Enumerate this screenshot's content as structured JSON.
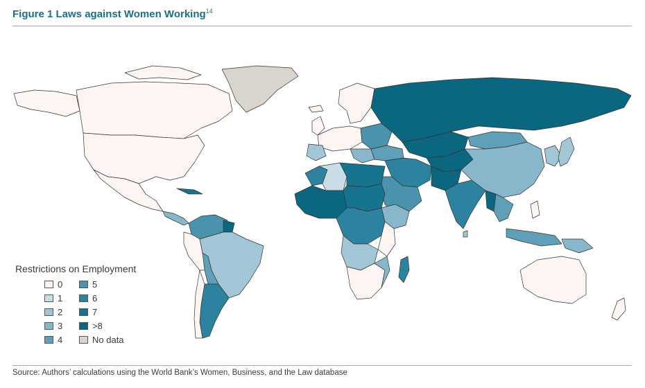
{
  "figure": {
    "title": "Figure 1  Laws against Women Working",
    "footnote": "14"
  },
  "legend": {
    "title": "Restrictions on Employment",
    "items": [
      {
        "label": "0",
        "color": "#fdf5f1"
      },
      {
        "label": "1",
        "color": "#c9dde6"
      },
      {
        "label": "2",
        "color": "#a3c6d6"
      },
      {
        "label": "3",
        "color": "#88b7cb"
      },
      {
        "label": "4",
        "color": "#5f9fb7"
      },
      {
        "label": "5",
        "color": "#4b93ad"
      },
      {
        "label": "6",
        "color": "#2d839f"
      },
      {
        "label": "7",
        "color": "#17748f"
      },
      {
        "label": ">8",
        "color": "#0b6680"
      },
      {
        "label": "No data",
        "color": "#d9d5ce"
      }
    ]
  },
  "source": "Source: Authors’ calculations using the World Bank’s Women, Business, and the Law database",
  "colors": {
    "accent_title": "#1b6f86",
    "rule": "#b3a58d"
  }
}
